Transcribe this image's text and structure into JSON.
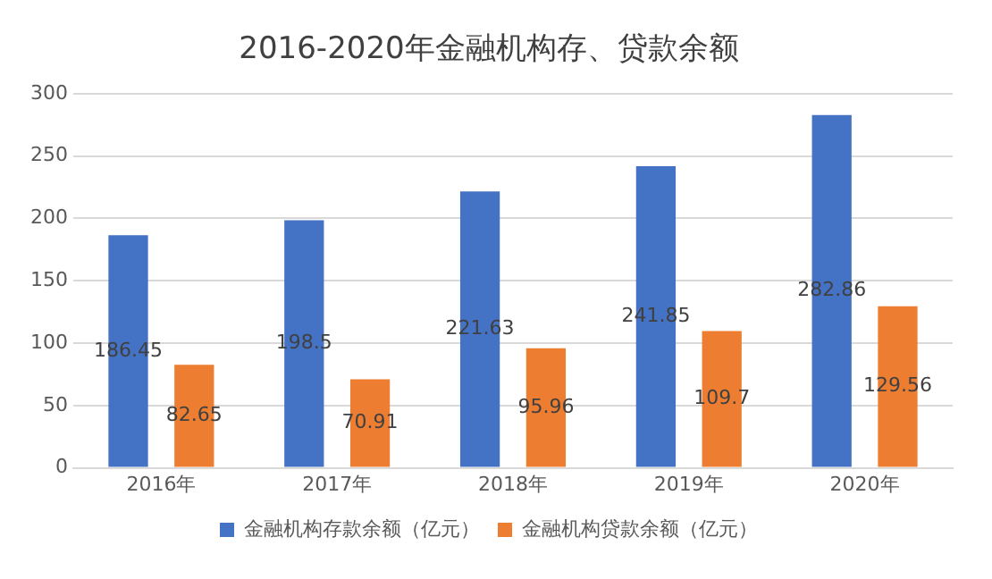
{
  "chart_data": {
    "type": "bar",
    "title": "2016-2020年金融机构存、贷款余额",
    "categories": [
      "2016年",
      "2017年",
      "2018年",
      "2019年",
      "2020年"
    ],
    "series": [
      {
        "name": "金融机构存款余额（亿元）",
        "color": "#4472c4",
        "values": [
          186.45,
          198.5,
          221.63,
          241.85,
          282.86
        ]
      },
      {
        "name": "金融机构贷款余额（亿元）",
        "color": "#ed7d31",
        "values": [
          82.65,
          70.91,
          95.96,
          109.7,
          129.56
        ]
      }
    ],
    "ylim": [
      0,
      300
    ],
    "yticks": [
      0,
      50,
      100,
      150,
      200,
      250,
      300
    ],
    "grid": "y",
    "legend": "bottom",
    "data_labels": true
  }
}
